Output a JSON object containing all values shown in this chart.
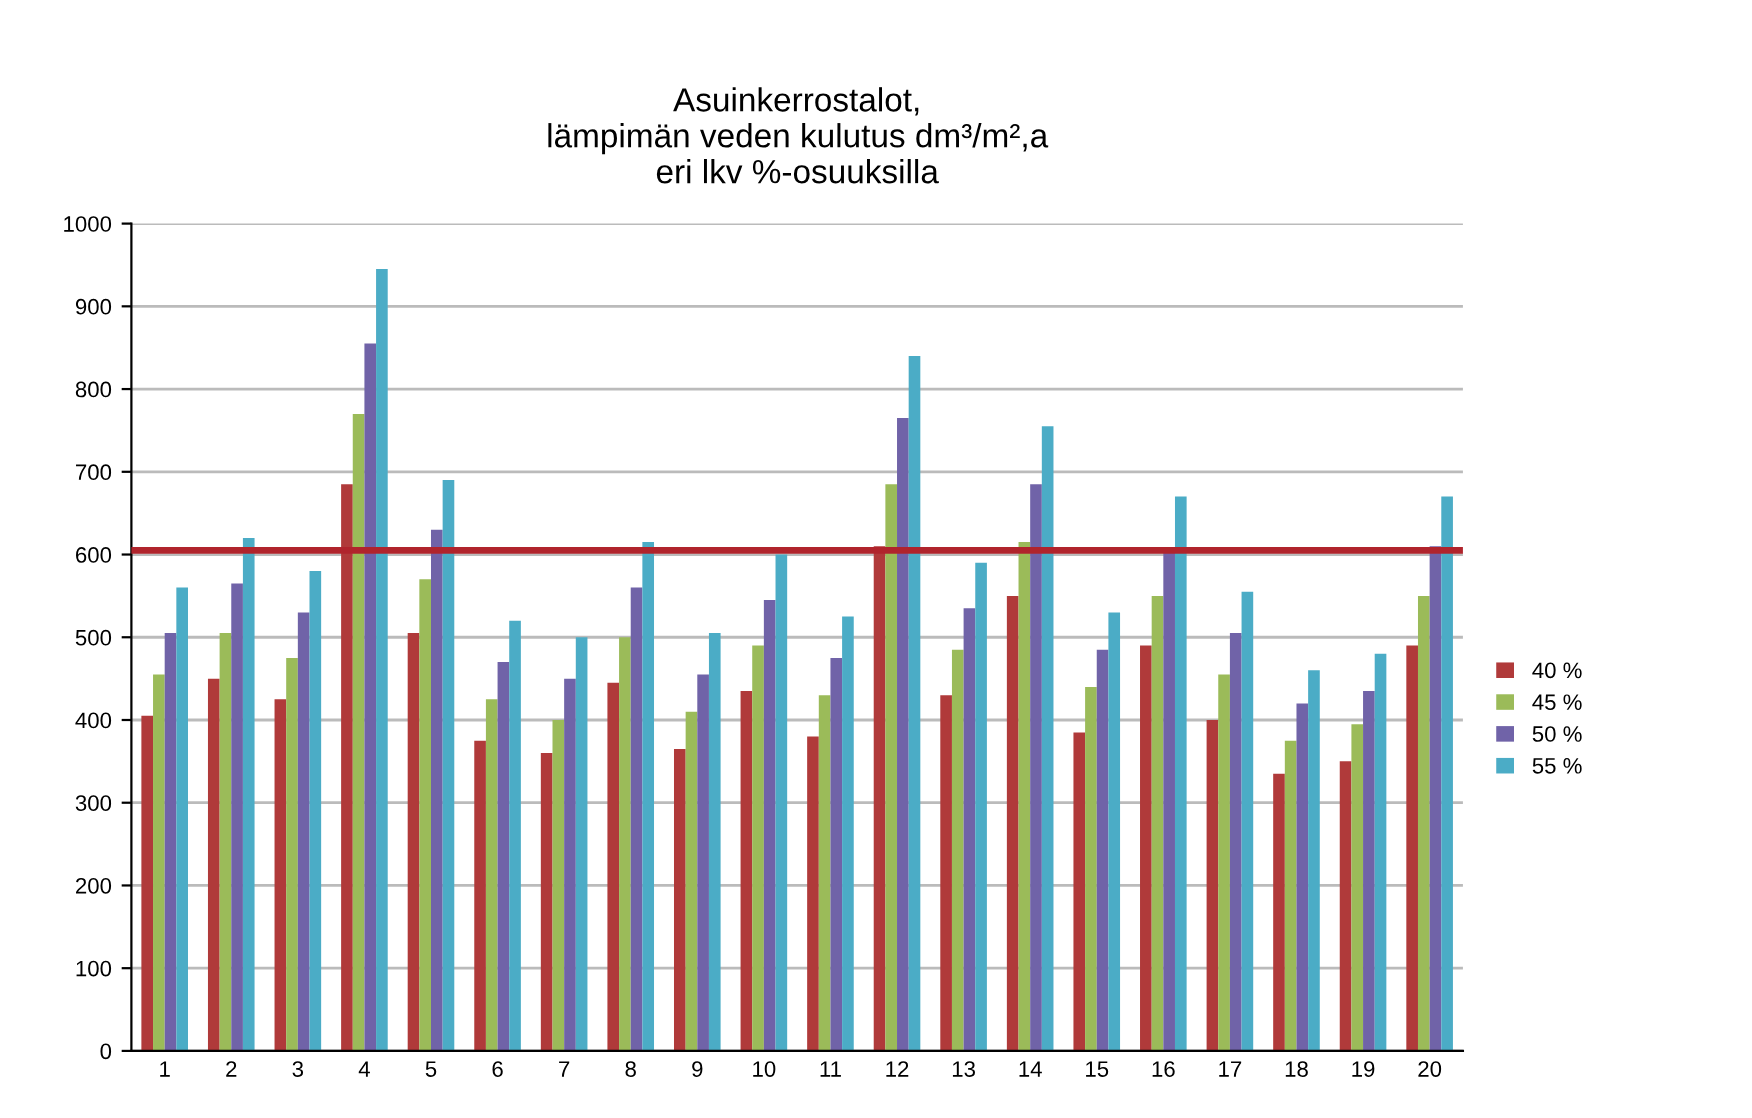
{
  "chart_data": {
    "type": "bar",
    "title": "Asuinkerrostalot,\nlämpimän veden kulutus dm³/m²,a\neri lkv %-osuuksilla",
    "categories": [
      "1",
      "2",
      "3",
      "4",
      "5",
      "6",
      "7",
      "8",
      "9",
      "10",
      "11",
      "12",
      "13",
      "14",
      "15",
      "16",
      "17",
      "18",
      "19",
      "20"
    ],
    "series": [
      {
        "name": "40 %",
        "color": "#b03a3a",
        "values": [
          405,
          450,
          425,
          685,
          505,
          375,
          360,
          445,
          365,
          435,
          380,
          610,
          430,
          550,
          385,
          490,
          400,
          335,
          350,
          490
        ]
      },
      {
        "name": "45 %",
        "color": "#9bbb59",
        "values": [
          455,
          505,
          475,
          770,
          570,
          425,
          400,
          500,
          410,
          490,
          430,
          685,
          485,
          615,
          440,
          550,
          455,
          375,
          395,
          550
        ]
      },
      {
        "name": "50 %",
        "color": "#7063a8",
        "values": [
          505,
          565,
          530,
          855,
          630,
          470,
          450,
          560,
          455,
          545,
          475,
          765,
          535,
          685,
          485,
          605,
          505,
          420,
          435,
          610
        ]
      },
      {
        "name": "55 %",
        "color": "#4bacc6",
        "values": [
          560,
          620,
          580,
          945,
          690,
          520,
          500,
          615,
          505,
          600,
          525,
          840,
          590,
          755,
          530,
          670,
          555,
          460,
          480,
          670
        ]
      }
    ],
    "ylim": [
      0,
      1000
    ],
    "yticks": [
      0,
      100,
      200,
      300,
      400,
      500,
      600,
      700,
      800,
      900,
      1000
    ],
    "grid": "y",
    "legend": "right",
    "ref_lines": [
      {
        "axis": "y",
        "value": 605,
        "color": "#b0242c",
        "line_style": "solid"
      }
    ]
  }
}
